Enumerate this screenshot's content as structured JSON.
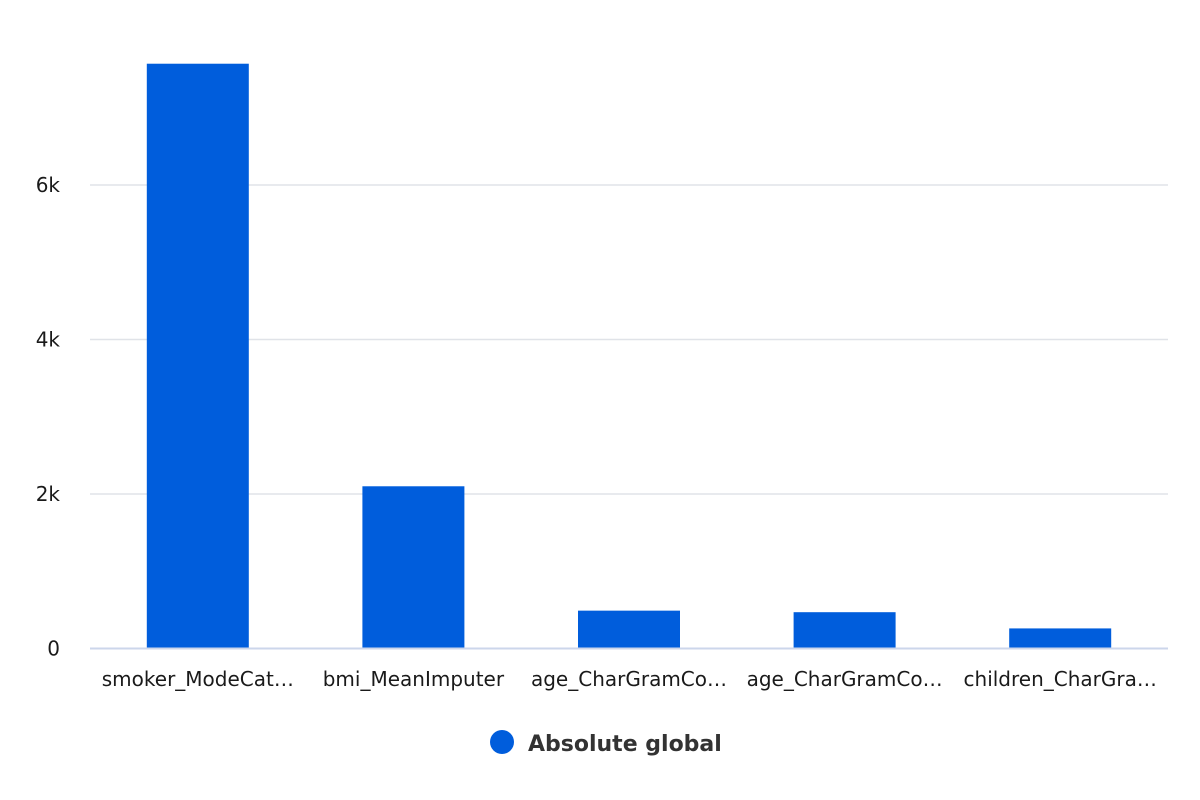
{
  "chart_data": {
    "type": "bar",
    "title": "",
    "xlabel": "",
    "ylabel": "",
    "categories": [
      "smoker_ModeCat…",
      "bmi_MeanImputer",
      "age_CharGramCo…",
      "age_CharGramCo…",
      "children_CharGra…"
    ],
    "series": [
      {
        "name": "Absolute global",
        "color": "#005ddc",
        "values": [
          7570,
          2100,
          490,
          470,
          260
        ]
      }
    ],
    "ylim": [
      0,
      8000
    ],
    "yticks": [
      0,
      2000,
      4000,
      6000
    ],
    "ytick_labels": [
      "0",
      "2k",
      "4k",
      "6k"
    ],
    "grid": true,
    "legend_position": "bottom-center"
  },
  "colors": {
    "grid": "#e0e3e8",
    "axis": "#ccd6eb",
    "text": "#1a1a1a",
    "legend_text": "#333333"
  }
}
